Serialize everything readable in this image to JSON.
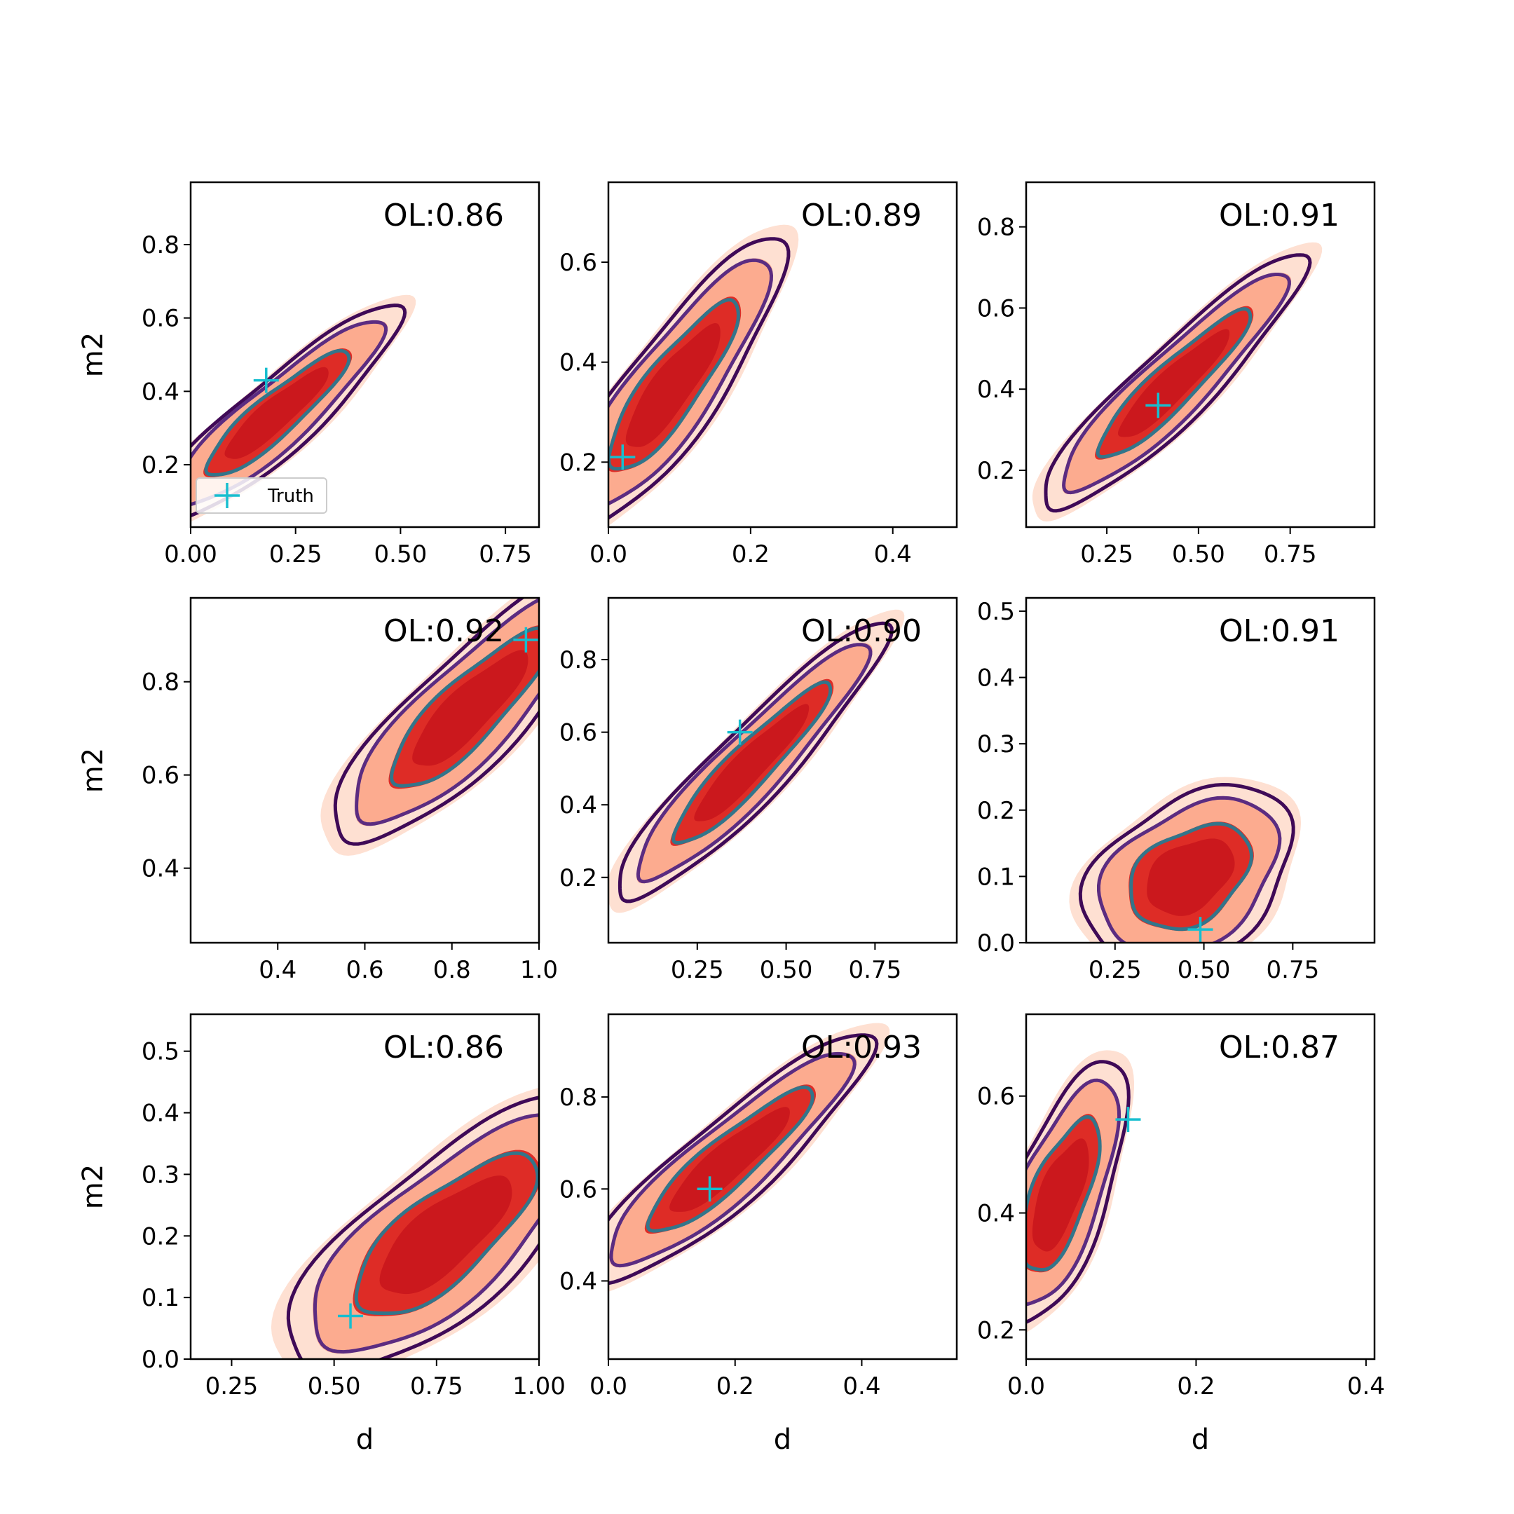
{
  "figure": {
    "colors": {
      "fill_outer": "#fee0d2",
      "fill_mid": "#fcab8f",
      "fill_inner": "#de2c26",
      "fill_core": "#cb181d",
      "contour_outer": "#3f0a57",
      "contour_mid": "#5b2c81",
      "contour_inner": "#33758a",
      "truth_marker": "#17becf"
    },
    "legend": {
      "label": "Truth",
      "panel": 0,
      "placement": "lower-left"
    }
  },
  "chart_data": [
    {
      "type": "contour",
      "row": 0,
      "col": 0,
      "title": "OL:0.86",
      "xlabel": "",
      "ylabel": "m2",
      "xlim": [
        0.0,
        0.83
      ],
      "ylim": [
        0.03,
        0.97
      ],
      "xticks": [
        0.0,
        0.25,
        0.5,
        0.75
      ],
      "xtick_labels": [
        "0.00",
        "0.25",
        "0.50",
        "0.75"
      ],
      "yticks": [
        0.2,
        0.4,
        0.6,
        0.8
      ],
      "ytick_labels": [
        "0.2",
        "0.4",
        "0.6",
        "0.8"
      ],
      "truth": [
        0.18,
        0.43
      ],
      "center": [
        0.2,
        0.34
      ],
      "spread": [
        0.13,
        0.13
      ],
      "rho": 0.9,
      "skew": 0.1
    },
    {
      "type": "contour",
      "row": 0,
      "col": 1,
      "title": "OL:0.89",
      "xlabel": "",
      "ylabel": "",
      "xlim": [
        0.0,
        0.49
      ],
      "ylim": [
        0.07,
        0.76
      ],
      "xticks": [
        0.0,
        0.2,
        0.4
      ],
      "xtick_labels": [
        "0.0",
        "0.2",
        "0.4"
      ],
      "yticks": [
        0.2,
        0.4,
        0.6
      ],
      "ytick_labels": [
        "0.2",
        "0.4",
        "0.6"
      ],
      "truth": [
        0.02,
        0.21
      ],
      "center": [
        0.09,
        0.35
      ],
      "spread": [
        0.07,
        0.13
      ],
      "rho": 0.86,
      "skew": 0.0
    },
    {
      "type": "contour",
      "row": 0,
      "col": 2,
      "title": "OL:0.91",
      "xlabel": "",
      "ylabel": "",
      "xlim": [
        0.03,
        0.98
      ],
      "ylim": [
        0.06,
        0.91
      ],
      "xticks": [
        0.25,
        0.5,
        0.75
      ],
      "xtick_labels": [
        "0.25",
        "0.50",
        "0.75"
      ],
      "yticks": [
        0.2,
        0.4,
        0.6,
        0.8
      ],
      "ytick_labels": [
        "0.2",
        "0.4",
        "0.6",
        "0.8"
      ],
      "truth": [
        0.39,
        0.36
      ],
      "center": [
        0.43,
        0.41
      ],
      "spread": [
        0.16,
        0.14
      ],
      "rho": 0.92,
      "skew": 0.0
    },
    {
      "type": "contour",
      "row": 1,
      "col": 0,
      "title": "OL:0.92",
      "xlabel": "",
      "ylabel": "m2",
      "xlim": [
        0.2,
        1.0
      ],
      "ylim": [
        0.24,
        0.98
      ],
      "xticks": [
        0.4,
        0.6,
        0.8,
        1.0
      ],
      "xtick_labels": [
        "0.4",
        "0.6",
        "0.8",
        "1.0"
      ],
      "yticks": [
        0.4,
        0.6,
        0.8
      ],
      "ytick_labels": [
        "0.4",
        "0.6",
        "0.8"
      ],
      "truth": [
        0.97,
        0.89
      ],
      "center": [
        0.84,
        0.74
      ],
      "spread": [
        0.14,
        0.13
      ],
      "rho": 0.85,
      "skew": 0.0
    },
    {
      "type": "contour",
      "row": 1,
      "col": 1,
      "title": "OL:0.90",
      "xlabel": "",
      "ylabel": "",
      "xlim": [
        0.0,
        0.98
      ],
      "ylim": [
        0.02,
        0.97
      ],
      "xticks": [
        0.25,
        0.5,
        0.75
      ],
      "xtick_labels": [
        "0.25",
        "0.50",
        "0.75"
      ],
      "yticks": [
        0.2,
        0.4,
        0.6,
        0.8
      ],
      "ytick_labels": [
        "0.2",
        "0.4",
        "0.6",
        "0.8"
      ],
      "truth": [
        0.37,
        0.6
      ],
      "center": [
        0.4,
        0.51
      ],
      "spread": [
        0.17,
        0.17
      ],
      "rho": 0.93,
      "skew": 0.0
    },
    {
      "type": "contour",
      "row": 1,
      "col": 2,
      "title": "OL:0.91",
      "xlabel": "",
      "ylabel": "",
      "xlim": [
        0.0,
        0.98
      ],
      "ylim": [
        0.0,
        0.52
      ],
      "xticks": [
        0.25,
        0.5,
        0.75
      ],
      "xtick_labels": [
        "0.25",
        "0.50",
        "0.75"
      ],
      "yticks": [
        0.0,
        0.1,
        0.2,
        0.3,
        0.4,
        0.5
      ],
      "ytick_labels": [
        "0.0",
        "0.1",
        "0.2",
        "0.3",
        "0.4",
        "0.5"
      ],
      "truth": [
        0.49,
        0.02
      ],
      "center": [
        0.46,
        0.1
      ],
      "spread": [
        0.13,
        0.06
      ],
      "rho": 0.35,
      "skew": 0.0
    },
    {
      "type": "contour",
      "row": 2,
      "col": 0,
      "title": "OL:0.86",
      "xlabel": "d",
      "ylabel": "m2",
      "xlim": [
        0.15,
        1.0
      ],
      "ylim": [
        0.0,
        0.56
      ],
      "xticks": [
        0.25,
        0.5,
        0.75,
        1.0
      ],
      "xtick_labels": [
        "0.25",
        "0.50",
        "0.75",
        "1.00"
      ],
      "yticks": [
        0.0,
        0.1,
        0.2,
        0.3,
        0.4,
        0.5
      ],
      "ytick_labels": [
        "0.0",
        "0.1",
        "0.2",
        "0.3",
        "0.4",
        "0.5"
      ],
      "truth": [
        0.54,
        0.07
      ],
      "center": [
        0.77,
        0.2
      ],
      "spread": [
        0.17,
        0.1
      ],
      "rho": 0.75,
      "skew": 0.0
    },
    {
      "type": "contour",
      "row": 2,
      "col": 1,
      "title": "OL:0.93",
      "xlabel": "d",
      "ylabel": "",
      "xlim": [
        0.0,
        0.55
      ],
      "ylim": [
        0.23,
        0.98
      ],
      "xticks": [
        0.0,
        0.2,
        0.4
      ],
      "xtick_labels": [
        "0.0",
        "0.2",
        "0.4"
      ],
      "yticks": [
        0.4,
        0.6,
        0.8
      ],
      "ytick_labels": [
        "0.4",
        "0.6",
        "0.8"
      ],
      "truth": [
        0.16,
        0.6
      ],
      "center": [
        0.19,
        0.66
      ],
      "spread": [
        0.1,
        0.12
      ],
      "rho": 0.9,
      "skew": 0.0
    },
    {
      "type": "contour",
      "row": 2,
      "col": 2,
      "title": "OL:0.87",
      "xlabel": "d",
      "ylabel": "",
      "xlim": [
        0.0,
        0.41
      ],
      "ylim": [
        0.15,
        0.74
      ],
      "xticks": [
        0.0,
        0.2,
        0.4
      ],
      "xtick_labels": [
        "0.0",
        "0.2",
        "0.4"
      ],
      "yticks": [
        0.2,
        0.4,
        0.6
      ],
      "ytick_labels": [
        "0.2",
        "0.4",
        "0.6"
      ],
      "truth": [
        0.12,
        0.56
      ],
      "center": [
        0.04,
        0.43
      ],
      "spread": [
        0.035,
        0.1
      ],
      "rho": 0.65,
      "skew": 0.0
    }
  ]
}
